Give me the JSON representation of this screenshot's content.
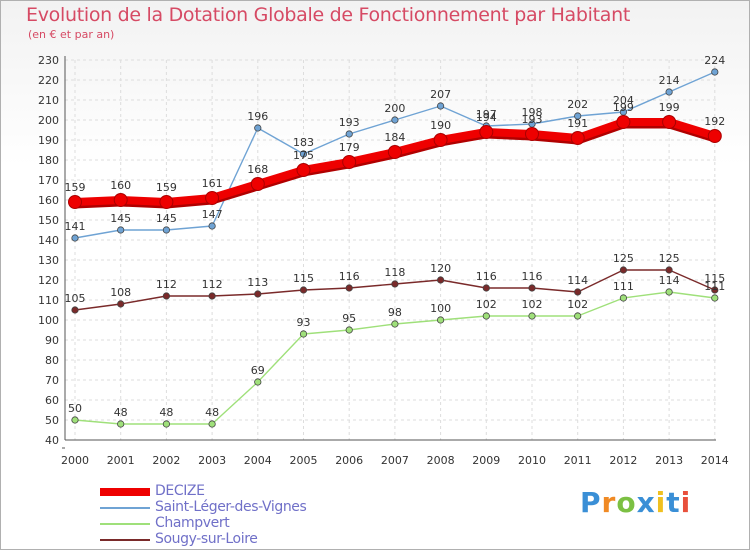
{
  "chart_data": {
    "type": "line",
    "title": "Evolution de la Dotation Globale de Fonctionnement par Habitant",
    "subtitle": "(en € et par an)",
    "xlabel": "",
    "ylabel": "",
    "ylim": [
      40,
      230
    ],
    "ytick_step": 10,
    "categories": [
      "2000",
      "2001",
      "2002",
      "2003",
      "2004",
      "2005",
      "2006",
      "2007",
      "2008",
      "2009",
      "2010",
      "2011",
      "2012",
      "2013",
      "2014"
    ],
    "series": [
      {
        "name": "DECIZE",
        "color": "#ee0000",
        "values": [
          159,
          160,
          159,
          161,
          168,
          175,
          179,
          184,
          190,
          194,
          193,
          191,
          199,
          199,
          192
        ]
      },
      {
        "name": "Saint-Léger-des-Vignes",
        "color": "#6fa3d4",
        "values": [
          141,
          145,
          145,
          147,
          196,
          183,
          193,
          200,
          207,
          197,
          198,
          202,
          204,
          214,
          224
        ]
      },
      {
        "name": "Champvert",
        "color": "#9fe07a",
        "values": [
          50,
          48,
          48,
          48,
          69,
          93,
          95,
          98,
          100,
          102,
          102,
          102,
          111,
          114,
          111
        ]
      },
      {
        "name": "Sougy-sur-Loire",
        "color": "#7a2a2a",
        "values": [
          105,
          108,
          112,
          112,
          113,
          115,
          116,
          118,
          120,
          116,
          116,
          114,
          125,
          125,
          115
        ]
      }
    ]
  },
  "legend": {
    "items": [
      "DECIZE",
      "Saint-Léger-des-Vignes",
      "Champvert",
      "Sougy-sur-Loire"
    ]
  },
  "brand": {
    "letters": [
      "P",
      "r",
      "o",
      "x",
      "i",
      "t",
      "i"
    ]
  }
}
